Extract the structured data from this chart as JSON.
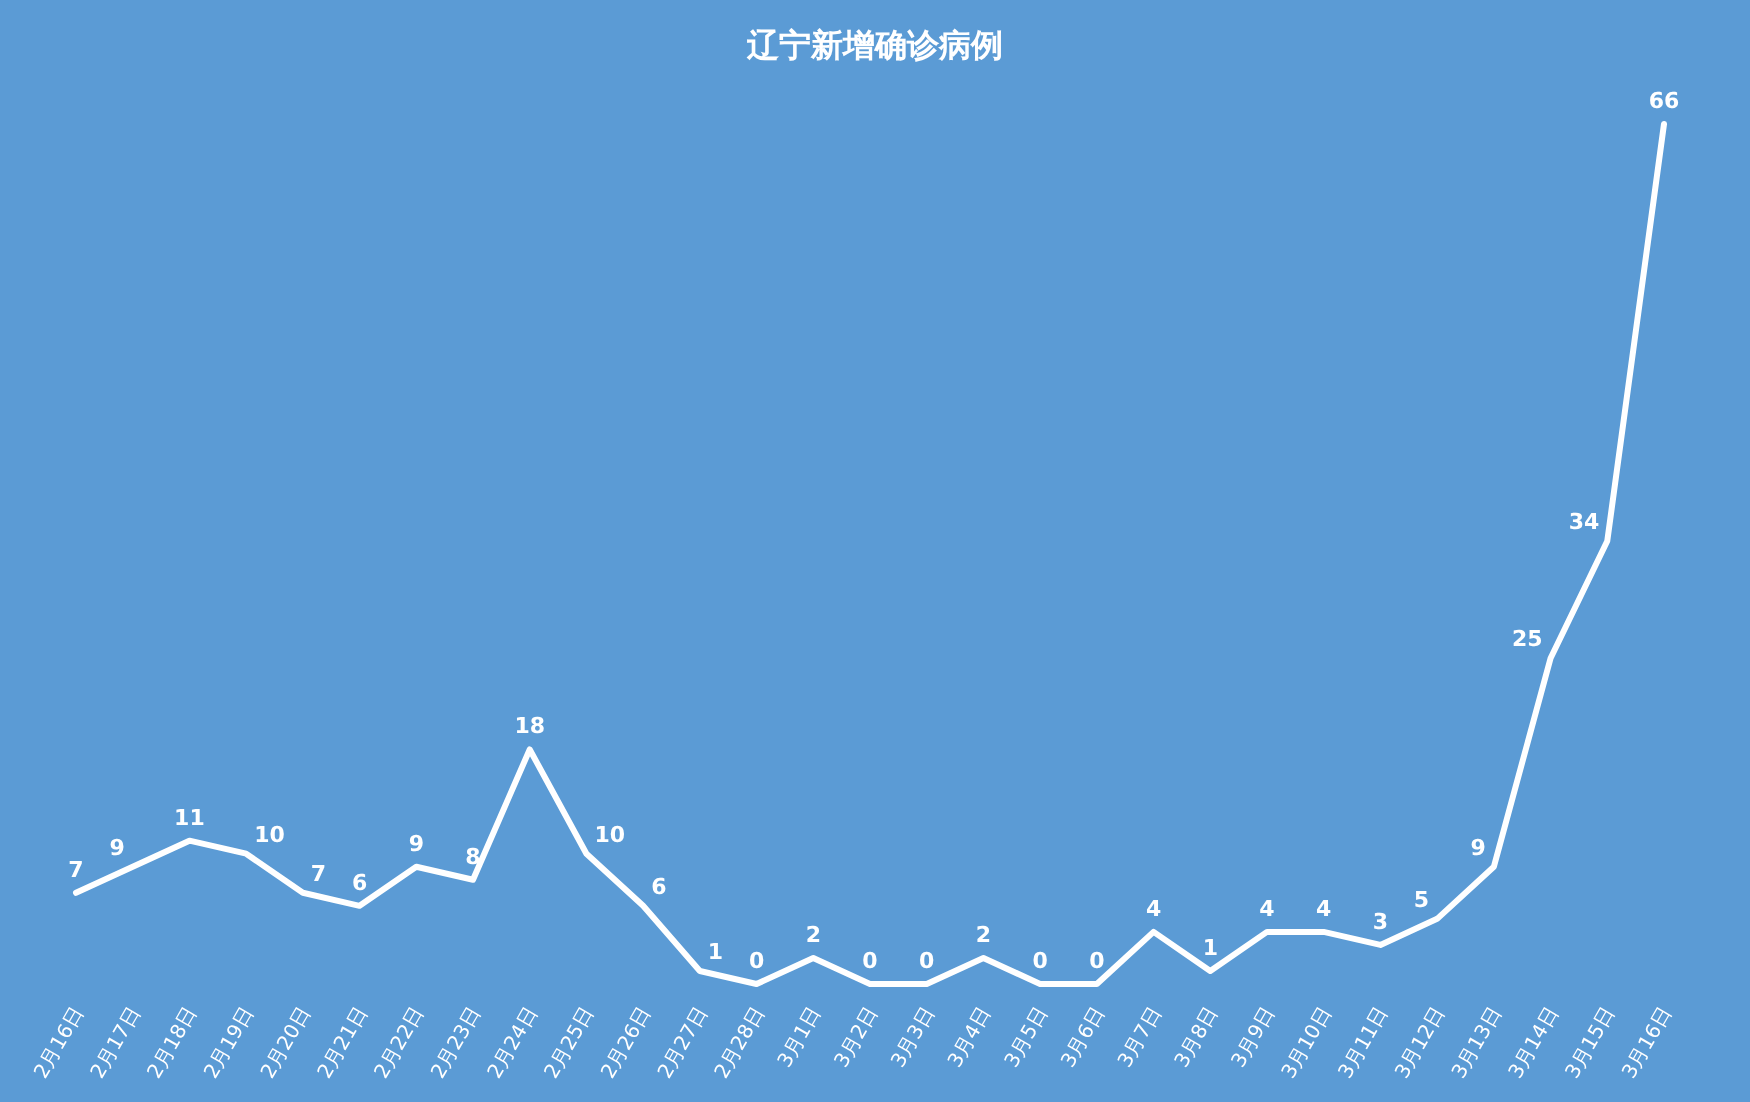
{
  "chart_data": {
    "type": "line",
    "title": "辽宁新增确诊病例",
    "categories": [
      "2月16日",
      "2月17日",
      "2月18日",
      "2月19日",
      "2月20日",
      "2月21日",
      "2月22日",
      "2月23日",
      "2月24日",
      "2月25日",
      "2月26日",
      "2月27日",
      "2月28日",
      "3月1日",
      "3月2日",
      "3月3日",
      "3月4日",
      "3月5日",
      "3月6日",
      "3月7日",
      "3月8日",
      "3月9日",
      "3月10日",
      "3月11日",
      "3月12日",
      "3月13日",
      "3月14日",
      "3月15日",
      "3月16日"
    ],
    "values": [
      7,
      9,
      11,
      10,
      7,
      6,
      9,
      8,
      18,
      10,
      6,
      1,
      0,
      2,
      0,
      0,
      2,
      0,
      0,
      4,
      1,
      4,
      4,
      3,
      5,
      9,
      25,
      34,
      66
    ],
    "color": "#ffffff",
    "data_labels": true
  }
}
